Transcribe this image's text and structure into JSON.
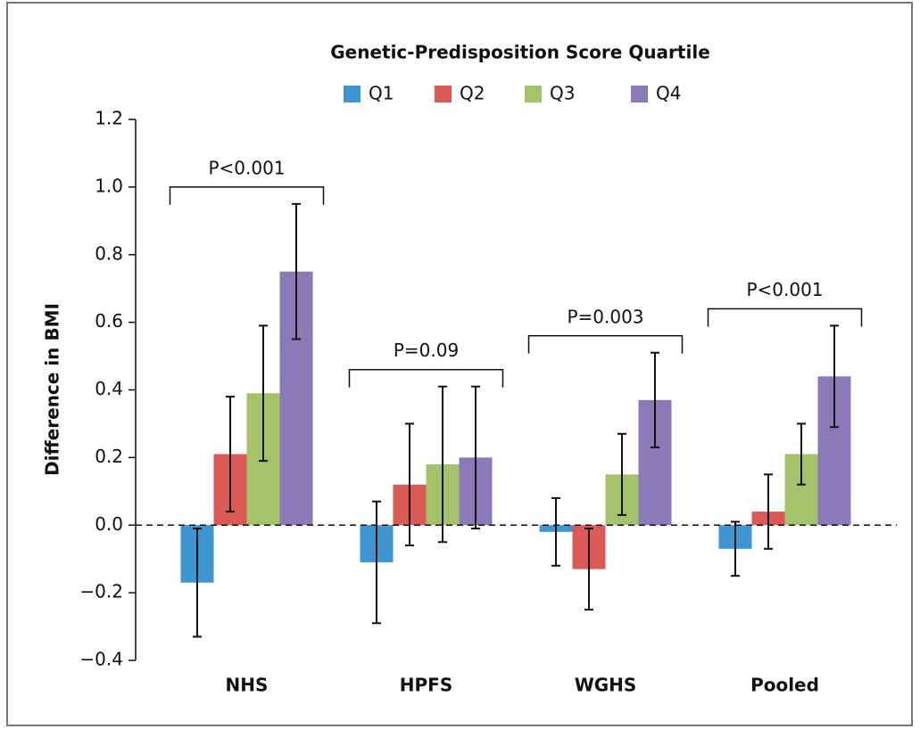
{
  "chart_data": {
    "type": "bar",
    "legend_title": "Genetic-Predisposition Score Quartile",
    "y_label": "Difference in BMI",
    "categories": [
      "NHS",
      "HPFS",
      "WGHS",
      "Pooled"
    ],
    "series": [
      {
        "name": "Q1",
        "color": "#3d96cf",
        "values": [
          -0.17,
          -0.11,
          -0.02,
          -0.07
        ],
        "lower": [
          -0.33,
          -0.29,
          -0.12,
          -0.15
        ],
        "upper": [
          -0.01,
          0.07,
          0.08,
          0.01
        ]
      },
      {
        "name": "Q2",
        "color": "#dc5a55",
        "values": [
          0.21,
          0.12,
          -0.13,
          0.04
        ],
        "lower": [
          0.04,
          -0.06,
          -0.25,
          -0.07
        ],
        "upper": [
          0.38,
          0.3,
          -0.01,
          0.15
        ]
      },
      {
        "name": "Q3",
        "color": "#a3c26a",
        "values": [
          0.39,
          0.18,
          0.15,
          0.21
        ],
        "lower": [
          0.19,
          -0.05,
          0.03,
          0.12
        ],
        "upper": [
          0.59,
          0.41,
          0.27,
          0.3
        ]
      },
      {
        "name": "Q4",
        "color": "#8a7ab8",
        "values": [
          0.75,
          0.2,
          0.37,
          0.44
        ],
        "lower": [
          0.55,
          -0.01,
          0.23,
          0.29
        ],
        "upper": [
          0.95,
          0.41,
          0.51,
          0.59
        ]
      }
    ],
    "annotations": [
      "P<0.001",
      "P=0.09",
      "P=0.003",
      "P<0.001"
    ],
    "ylim": [
      -0.4,
      1.2
    ],
    "yticks": [
      {
        "value": -0.4,
        "label": "−0.4"
      },
      {
        "value": -0.2,
        "label": "−0.2"
      },
      {
        "value": 0,
        "label": "0.0"
      },
      0.2,
      0.4,
      0.6,
      0.8,
      {
        "value": 1,
        "label": "1.0"
      },
      1.2
    ],
    "zero_line": "dashed"
  }
}
